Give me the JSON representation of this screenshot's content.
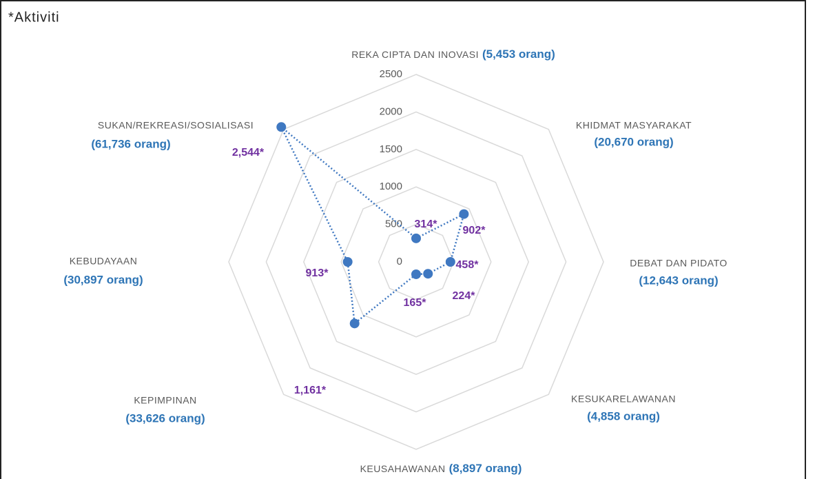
{
  "chart_data": {
    "type": "radar",
    "title": "*Aktiviti",
    "categories": [
      "REKA CIPTA DAN INOVASI",
      "KHIDMAT MASYARAKAT",
      "DEBAT DAN PIDATO",
      "KESUKARELAWANAN",
      "KEUSAHAWANAN",
      "KEPIMPINAN",
      "KEBUDAYAAN",
      "SUKAN/REKREASI/SOSIALISASI"
    ],
    "category_counts": [
      "(5,453 orang)",
      "(20,670 orang)",
      "(12,643 orang)",
      "(4,858 orang)",
      "(8,897 orang)",
      "(33,626 orang)",
      "(30,897 orang)",
      "(61,736 orang)"
    ],
    "values": [
      314,
      902,
      458,
      224,
      165,
      1161,
      913,
      2544
    ],
    "value_labels": [
      "314*",
      "902*",
      "458*",
      "224*",
      "165*",
      "1,161*",
      "913*",
      "2,544*"
    ],
    "color": "#3f78c1",
    "ylim": [
      0,
      2500
    ],
    "yticks": [
      0,
      500,
      1000,
      1500,
      2000,
      2500
    ],
    "grid": true
  }
}
